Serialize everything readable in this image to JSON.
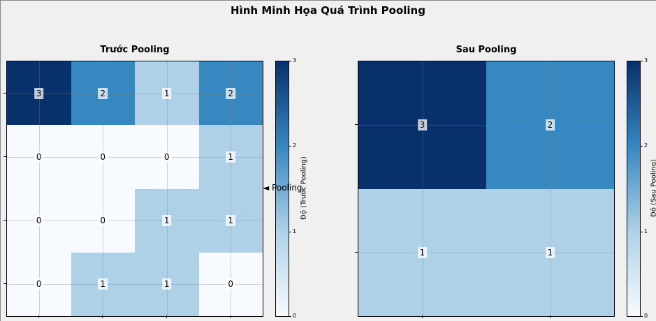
{
  "title": "Hình Minh Họa Quá Trình Pooling",
  "arrow_label": "◄ Pooling",
  "colors": {
    "background": "#f0f0f0",
    "colormap": [
      "#f7fbff",
      "#afd1e7",
      "#3787c0",
      "#08306b"
    ]
  },
  "chart_data": [
    {
      "type": "heatmap",
      "title": "Trước Pooling",
      "colorbar_label": "Độ (Trước Pooling)",
      "vmin": 0,
      "vmax": 3,
      "colorbar_ticks": [
        0,
        1,
        2,
        3
      ],
      "grid": true,
      "matrix": [
        [
          3,
          2,
          1,
          2
        ],
        [
          0,
          0,
          0,
          1
        ],
        [
          0,
          0,
          1,
          1
        ],
        [
          0,
          1,
          1,
          0
        ]
      ]
    },
    {
      "type": "heatmap",
      "title": "Sau Pooling",
      "colorbar_label": "Độ (Sau Pooling)",
      "vmin": 0,
      "vmax": 3,
      "colorbar_ticks": [
        0,
        1,
        2,
        3
      ],
      "grid": true,
      "matrix": [
        [
          3,
          2
        ],
        [
          1,
          1
        ]
      ]
    }
  ]
}
